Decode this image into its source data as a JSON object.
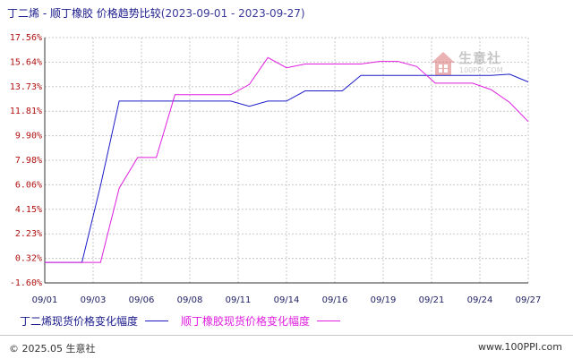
{
  "title": {
    "main": "丁二烯 - 顺丁橡胶 价格趋势比较",
    "date_range": "(2023-09-01 - 2023-09-27)"
  },
  "watermark": {
    "brand": "生意社",
    "site": "100PPI.COM",
    "icon": "house-logo-icon"
  },
  "footer": {
    "copyright": "© 2025.05 生意社",
    "site": "www.100PPI.com"
  },
  "colors": {
    "series1": "#1c1cc8",
    "series2": "#e01ee0",
    "axis": "#333333",
    "grid": "#c8c8c8"
  },
  "chart_data": {
    "type": "line",
    "title": "丁二烯 - 顺丁橡胶 价格趋势比较",
    "x_tick_labels": [
      "09/01",
      "09/03",
      "09/06",
      "09/08",
      "09/11",
      "09/14",
      "09/16",
      "09/19",
      "09/21",
      "09/24",
      "09/27"
    ],
    "y_tick_labels": [
      "17.56%",
      "15.64%",
      "13.73%",
      "11.81%",
      "9.90%",
      "7.98%",
      "6.06%",
      "4.15%",
      "2.23%",
      "0.32%",
      "-1.60%"
    ],
    "ylim": [
      -1.6,
      17.56
    ],
    "grid": true,
    "legend_position": "bottom-left",
    "series": [
      {
        "name": "丁二烯现货价格变化幅度",
        "color": "#1c1cc8",
        "points": [
          {
            "x": "09/01",
            "y": 0.0
          },
          {
            "x": "09/02",
            "y": 0.0
          },
          {
            "x": "09/03",
            "y": 0.0
          },
          {
            "x": "09/04",
            "y": 6.0
          },
          {
            "x": "09/05",
            "y": 12.6
          },
          {
            "x": "09/06",
            "y": 12.6
          },
          {
            "x": "09/07",
            "y": 12.6
          },
          {
            "x": "09/08",
            "y": 12.6
          },
          {
            "x": "09/09",
            "y": 12.6
          },
          {
            "x": "09/10",
            "y": 12.6
          },
          {
            "x": "09/11",
            "y": 12.6
          },
          {
            "x": "09/12",
            "y": 12.2
          },
          {
            "x": "09/13",
            "y": 12.6
          },
          {
            "x": "09/14",
            "y": 12.6
          },
          {
            "x": "09/15",
            "y": 13.4
          },
          {
            "x": "09/16",
            "y": 13.4
          },
          {
            "x": "09/17",
            "y": 13.4
          },
          {
            "x": "09/18",
            "y": 14.6
          },
          {
            "x": "09/19",
            "y": 14.6
          },
          {
            "x": "09/20",
            "y": 14.6
          },
          {
            "x": "09/21",
            "y": 14.6
          },
          {
            "x": "09/22",
            "y": 14.6
          },
          {
            "x": "09/23",
            "y": 14.6
          },
          {
            "x": "09/24",
            "y": 14.6
          },
          {
            "x": "09/25",
            "y": 14.6
          },
          {
            "x": "09/26",
            "y": 14.7
          },
          {
            "x": "09/27",
            "y": 14.1
          }
        ]
      },
      {
        "name": "顺丁橡胶现货价格变化幅度",
        "color": "#e01ee0",
        "points": [
          {
            "x": "09/01",
            "y": 0.0
          },
          {
            "x": "09/02",
            "y": 0.0
          },
          {
            "x": "09/03",
            "y": 0.0
          },
          {
            "x": "09/04",
            "y": 0.0
          },
          {
            "x": "09/05",
            "y": 5.8
          },
          {
            "x": "09/06",
            "y": 8.2
          },
          {
            "x": "09/07",
            "y": 8.2
          },
          {
            "x": "09/08",
            "y": 13.1
          },
          {
            "x": "09/09",
            "y": 13.1
          },
          {
            "x": "09/10",
            "y": 13.1
          },
          {
            "x": "09/11",
            "y": 13.1
          },
          {
            "x": "09/12",
            "y": 13.9
          },
          {
            "x": "09/13",
            "y": 16.0
          },
          {
            "x": "09/14",
            "y": 15.2
          },
          {
            "x": "09/15",
            "y": 15.5
          },
          {
            "x": "09/16",
            "y": 15.5
          },
          {
            "x": "09/17",
            "y": 15.5
          },
          {
            "x": "09/18",
            "y": 15.5
          },
          {
            "x": "09/19",
            "y": 15.7
          },
          {
            "x": "09/20",
            "y": 15.7
          },
          {
            "x": "09/21",
            "y": 15.3
          },
          {
            "x": "09/22",
            "y": 14.0
          },
          {
            "x": "09/23",
            "y": 14.0
          },
          {
            "x": "09/24",
            "y": 14.0
          },
          {
            "x": "09/25",
            "y": 13.5
          },
          {
            "x": "09/26",
            "y": 12.5
          },
          {
            "x": "09/27",
            "y": 11.0
          }
        ]
      }
    ]
  }
}
